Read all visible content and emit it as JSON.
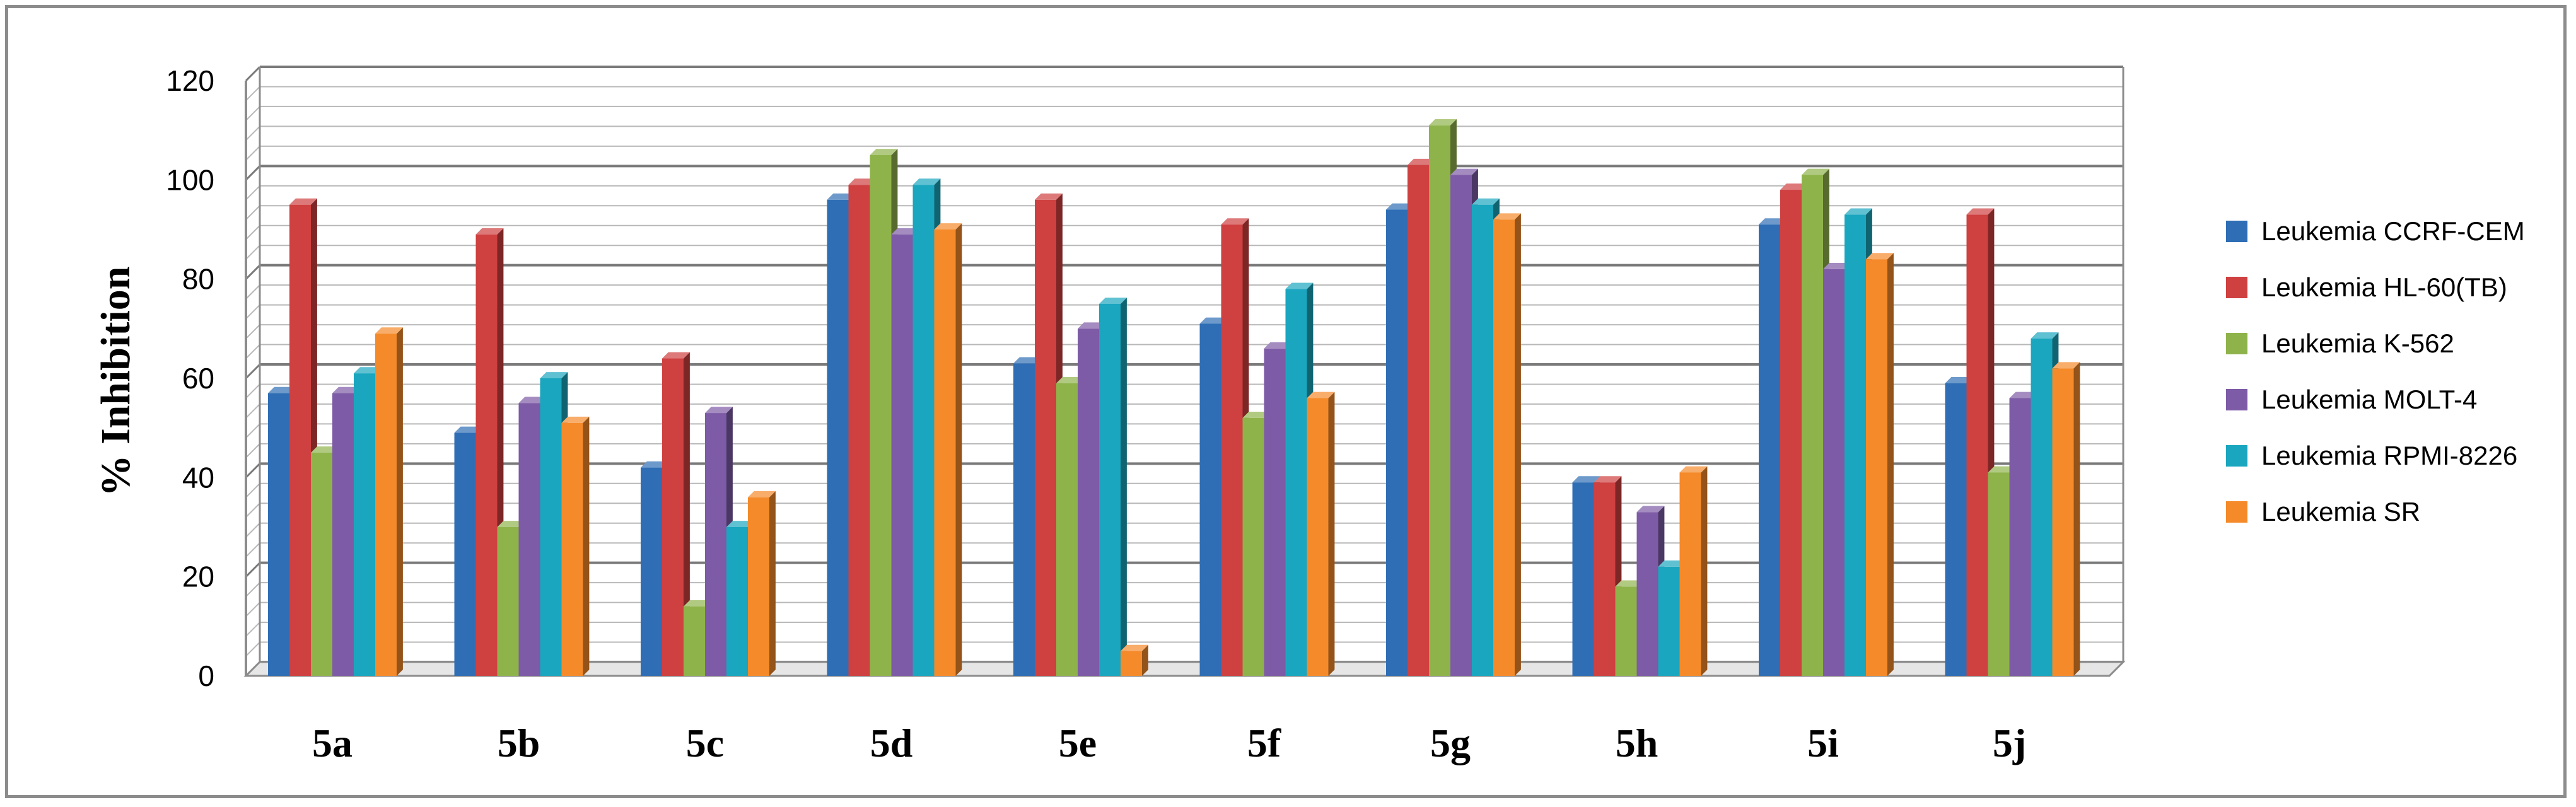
{
  "chart_data": {
    "type": "bar",
    "style": "3d-clustered-column",
    "title": "",
    "xlabel": "",
    "ylabel": "% Inhibition",
    "ylim": [
      0,
      120
    ],
    "yticks": [
      0,
      20,
      40,
      60,
      80,
      100,
      120
    ],
    "grid": true,
    "legend_position": "right",
    "categories": [
      "5a",
      "5b",
      "5c",
      "5d",
      "5e",
      "5f",
      "5g",
      "5h",
      "5i",
      "5j"
    ],
    "series": [
      {
        "name": "Leukemia CCRF-CEM",
        "color": "#2f6eb5",
        "values": [
          57,
          49,
          42,
          96,
          63,
          71,
          94,
          39,
          91,
          59
        ]
      },
      {
        "name": "Leukemia HL-60(TB)",
        "color": "#cf4040",
        "values": [
          95,
          89,
          64,
          99,
          96,
          91,
          103,
          39,
          98,
          93
        ]
      },
      {
        "name": "Leukemia K-562",
        "color": "#8fb34b",
        "values": [
          45,
          30,
          14,
          105,
          59,
          52,
          111,
          18,
          101,
          41
        ]
      },
      {
        "name": "Leukemia MOLT-4",
        "color": "#7d5ba6",
        "values": [
          57,
          55,
          53,
          89,
          70,
          66,
          101,
          33,
          82,
          56
        ]
      },
      {
        "name": "Leukemia RPMI-8226",
        "color": "#1aa6be",
        "values": [
          61,
          60,
          30,
          99,
          75,
          78,
          95,
          22,
          93,
          68
        ]
      },
      {
        "name": "Leukemia SR",
        "color": "#f58a2a",
        "values": [
          69,
          51,
          36,
          90,
          5,
          56,
          92,
          41,
          84,
          62
        ]
      }
    ]
  }
}
